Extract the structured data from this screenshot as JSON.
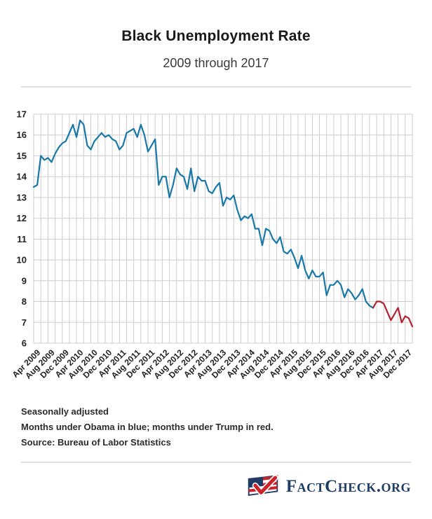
{
  "header": {
    "title": "Black Unemployment Rate",
    "subtitle": "2009 through 2017"
  },
  "notes": {
    "line1": "Seasonally adjusted",
    "line2": "Months under Obama in blue; months under Trump in red.",
    "line3": "Source: Bureau of Labor Statistics"
  },
  "logo": {
    "text": "FactCheck.org",
    "flag_icon": "flag-with-check-icon",
    "navy": "#1e3c64",
    "red": "#cc2229"
  },
  "chart_data": {
    "type": "line",
    "title": "Black Unemployment Rate",
    "subtitle": "2009 through 2017",
    "xlabel": "",
    "ylabel": "",
    "ylim": [
      6,
      17
    ],
    "y_ticks": [
      6,
      7,
      8,
      9,
      10,
      11,
      12,
      13,
      14,
      15,
      16,
      17
    ],
    "grid": true,
    "grid_color": "#cdcdcd",
    "start_month": "Feb 2009",
    "end_month": "Dec 2017",
    "grid_step_months": 2,
    "x_tick_start_index": 2,
    "x_tick_step": 4,
    "x_tick_labels": [
      "Apr 2009",
      "Aug 2009",
      "Dec 2009",
      "Apr 2010",
      "Aug 2010",
      "Dec 2010",
      "Apr 2011",
      "Aug 2011",
      "Dec 2011",
      "Apr 2012",
      "Aug 2012",
      "Dec 2012",
      "Apr 2013",
      "Aug 2013",
      "Dec 2013",
      "Apr 2014",
      "Aug 2014",
      "Dec 2014",
      "Apr 2015",
      "Aug 2015",
      "Dec 2015",
      "Apr 2016",
      "Aug 2016",
      "Dec 2016",
      "Apr 2017",
      "Aug 2017",
      "Dec 2017"
    ],
    "values": [
      13.5,
      13.6,
      15.0,
      14.8,
      14.9,
      14.7,
      15.1,
      15.4,
      15.6,
      15.7,
      16.1,
      16.5,
      15.9,
      16.7,
      16.5,
      15.5,
      15.3,
      15.7,
      15.9,
      16.1,
      15.9,
      16.0,
      15.8,
      15.7,
      15.3,
      15.5,
      16.1,
      16.2,
      16.3,
      15.9,
      16.5,
      16.0,
      15.2,
      15.5,
      15.8,
      13.6,
      14.0,
      14.0,
      13.0,
      13.6,
      14.4,
      14.1,
      14.0,
      13.4,
      14.4,
      13.3,
      14.0,
      13.8,
      13.8,
      13.3,
      13.2,
      13.5,
      13.7,
      12.6,
      13.0,
      12.9,
      13.1,
      12.4,
      11.9,
      12.1,
      12.0,
      12.2,
      11.5,
      11.5,
      10.7,
      11.5,
      11.4,
      11.0,
      10.8,
      11.1,
      10.4,
      10.3,
      10.5,
      10.1,
      9.6,
      10.2,
      9.5,
      9.1,
      9.5,
      9.2,
      9.2,
      9.4,
      8.3,
      8.8,
      8.8,
      9.0,
      8.8,
      8.2,
      8.6,
      8.4,
      8.1,
      8.3,
      8.6,
      8.0,
      7.8,
      7.7,
      8.0,
      8.0,
      7.9,
      7.5,
      7.1,
      7.4,
      7.7,
      7.0,
      7.3,
      7.2,
      6.8
    ],
    "series": [
      {
        "name": "Obama",
        "color": "#1878a8",
        "start_index": 0,
        "end_index": 95
      },
      {
        "name": "Trump",
        "color": "#af2331",
        "start_index": 95,
        "end_index": 106
      }
    ],
    "legend_position": "none"
  }
}
